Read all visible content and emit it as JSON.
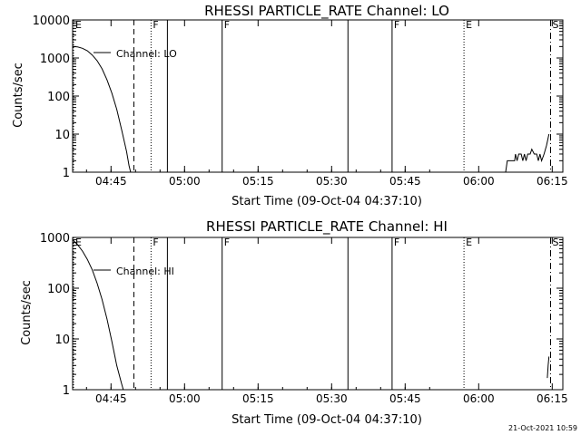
{
  "footer_stamp": "21-Oct-2021 10:59",
  "chart_data": [
    {
      "type": "line",
      "title": "RHESSI PARTICLE_RATE Channel: LO",
      "xlabel": "Start Time (09-Oct-04 04:37:10)",
      "ylabel": "Counts/sec",
      "yscale": "log",
      "grid": false,
      "legend_position": "top-left",
      "x_unit": "time",
      "xlim": [
        "04:37:10",
        "06:17:10"
      ],
      "ylim": [
        1,
        10000
      ],
      "x_ticks": [
        "04:45",
        "05:00",
        "05:15",
        "05:30",
        "05:45",
        "06:00",
        "06:15"
      ],
      "y_ticks": [
        "1",
        "10",
        "100",
        "1000",
        "10000"
      ],
      "series": [
        {
          "name": "Channel: LO",
          "points": [
            [
              "04:37:10",
              2000
            ],
            [
              "04:38:10",
              1950
            ],
            [
              "04:39:10",
              1800
            ],
            [
              "04:40:10",
              1550
            ],
            [
              "04:41:10",
              1200
            ],
            [
              "04:42:10",
              850
            ],
            [
              "04:43:10",
              520
            ],
            [
              "04:44:10",
              270
            ],
            [
              "04:45:10",
              120
            ],
            [
              "04:46:10",
              45
            ],
            [
              "04:47:10",
              13
            ],
            [
              "04:48:10",
              3.5
            ],
            [
              "04:48:40",
              1.5
            ],
            [
              "04:49:00",
              1
            ]
          ]
        },
        {
          "name": "",
          "points": [
            [
              "06:05:30",
              1
            ],
            [
              "06:05:50",
              2
            ],
            [
              "06:07:20",
              2
            ],
            [
              "06:07:30",
              3
            ],
            [
              "06:07:50",
              2
            ],
            [
              "06:08:10",
              3
            ],
            [
              "06:08:40",
              3
            ],
            [
              "06:09:00",
              2
            ],
            [
              "06:09:20",
              3
            ],
            [
              "06:09:40",
              2
            ],
            [
              "06:10:00",
              3
            ],
            [
              "06:10:30",
              3
            ],
            [
              "06:10:50",
              4
            ],
            [
              "06:11:20",
              3
            ],
            [
              "06:11:50",
              3
            ],
            [
              "06:12:10",
              2
            ],
            [
              "06:12:30",
              3
            ],
            [
              "06:12:50",
              2
            ],
            [
              "06:13:20",
              3
            ],
            [
              "06:13:50",
              5
            ],
            [
              "06:14:20",
              10
            ]
          ]
        }
      ],
      "markers": [
        {
          "x": "04:37:10",
          "label": "E",
          "style": "dotted"
        },
        {
          "x": "04:49:40",
          "label": "",
          "style": "dashed"
        },
        {
          "x": "04:53:10",
          "label": "F",
          "style": "dotted"
        },
        {
          "x": "04:56:30",
          "label": "",
          "style": "solid"
        },
        {
          "x": "05:07:40",
          "label": "F",
          "style": "solid"
        },
        {
          "x": "05:33:20",
          "label": "",
          "style": "solid"
        },
        {
          "x": "05:42:20",
          "label": "F",
          "style": "solid"
        },
        {
          "x": "05:57:00",
          "label": "E",
          "style": "dotted"
        },
        {
          "x": "06:14:40",
          "label": "S",
          "style": "dashdot"
        }
      ]
    },
    {
      "type": "line",
      "title": "RHESSI PARTICLE_RATE Channel: HI",
      "xlabel": "Start Time (09-Oct-04 04:37:10)",
      "ylabel": "Counts/sec",
      "yscale": "log",
      "grid": false,
      "legend_position": "top-left",
      "x_unit": "time",
      "xlim": [
        "04:37:10",
        "06:17:10"
      ],
      "ylim": [
        1,
        1000
      ],
      "x_ticks": [
        "04:45",
        "05:00",
        "05:15",
        "05:30",
        "05:45",
        "06:00",
        "06:15"
      ],
      "y_ticks": [
        "1",
        "10",
        "100",
        "1000"
      ],
      "series": [
        {
          "name": "Channel: HI",
          "points": [
            [
              "04:37:10",
              900
            ],
            [
              "04:38:10",
              720
            ],
            [
              "04:39:10",
              540
            ],
            [
              "04:40:10",
              370
            ],
            [
              "04:41:10",
              230
            ],
            [
              "04:42:10",
              125
            ],
            [
              "04:43:10",
              60
            ],
            [
              "04:44:10",
              25
            ],
            [
              "04:45:10",
              9
            ],
            [
              "04:46:10",
              3
            ],
            [
              "04:47:10",
              1.3
            ],
            [
              "04:47:30",
              1
            ]
          ]
        },
        {
          "name": "",
          "points": [
            [
              "06:14:00",
              1.7
            ],
            [
              "06:14:10",
              3
            ],
            [
              "06:14:20",
              4.5
            ]
          ]
        }
      ],
      "markers": [
        {
          "x": "04:37:10",
          "label": "E",
          "style": "dotted"
        },
        {
          "x": "04:49:40",
          "label": "",
          "style": "dashed"
        },
        {
          "x": "04:53:10",
          "label": "F",
          "style": "dotted"
        },
        {
          "x": "04:56:30",
          "label": "",
          "style": "solid"
        },
        {
          "x": "05:07:40",
          "label": "F",
          "style": "solid"
        },
        {
          "x": "05:33:20",
          "label": "",
          "style": "solid"
        },
        {
          "x": "05:42:20",
          "label": "F",
          "style": "solid"
        },
        {
          "x": "05:57:00",
          "label": "E",
          "style": "dotted"
        },
        {
          "x": "06:14:40",
          "label": "S",
          "style": "dashdot"
        }
      ]
    }
  ]
}
